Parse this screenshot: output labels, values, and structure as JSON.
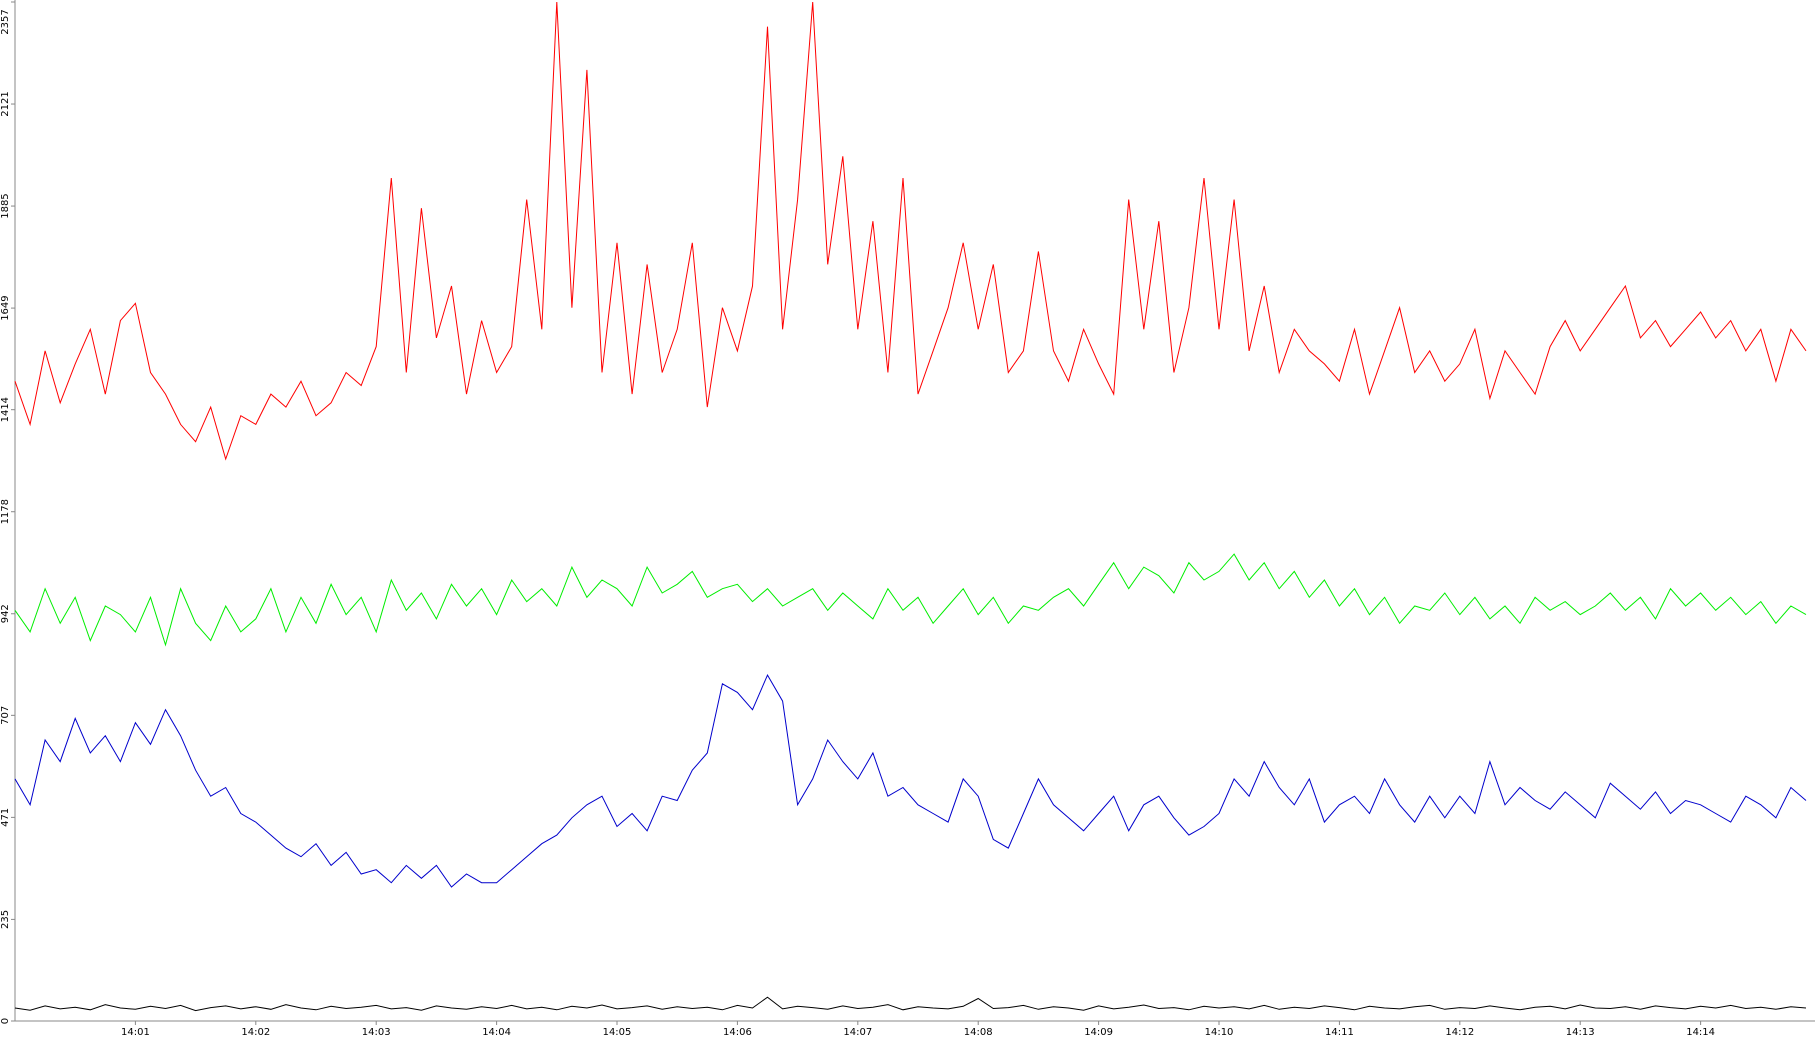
{
  "chart_data": {
    "type": "line",
    "xlim": [
      0,
      14.95
    ],
    "xticks": [
      {
        "value": 1,
        "label": "14:01"
      },
      {
        "value": 2,
        "label": "14:02"
      },
      {
        "value": 3,
        "label": "14:03"
      },
      {
        "value": 4,
        "label": "14:04"
      },
      {
        "value": 5,
        "label": "14:05"
      },
      {
        "value": 6,
        "label": "14:06"
      },
      {
        "value": 7,
        "label": "14:07"
      },
      {
        "value": 8,
        "label": "14:08"
      },
      {
        "value": 9,
        "label": "14:09"
      },
      {
        "value": 10,
        "label": "14:10"
      },
      {
        "value": 11,
        "label": "14:11"
      },
      {
        "value": 12,
        "label": "14:12"
      },
      {
        "value": 13,
        "label": "14:13"
      },
      {
        "value": 14,
        "label": "14:14"
      }
    ],
    "ylim": [
      0,
      2357
    ],
    "yticks": [
      0,
      235,
      471,
      707,
      942,
      1178,
      1414,
      1649,
      1885,
      2121,
      2357
    ],
    "x": [
      0,
      0.125,
      0.25,
      0.375,
      0.5,
      0.625,
      0.75,
      0.875,
      1,
      1.125,
      1.25,
      1.375,
      1.5,
      1.625,
      1.75,
      1.875,
      2,
      2.125,
      2.25,
      2.375,
      2.5,
      2.625,
      2.75,
      2.875,
      3,
      3.125,
      3.25,
      3.375,
      3.5,
      3.625,
      3.75,
      3.875,
      4,
      4.125,
      4.25,
      4.375,
      4.5,
      4.625,
      4.75,
      4.875,
      5,
      5.125,
      5.25,
      5.375,
      5.5,
      5.625,
      5.75,
      5.875,
      6,
      6.125,
      6.25,
      6.375,
      6.5,
      6.625,
      6.75,
      6.875,
      7,
      7.125,
      7.25,
      7.375,
      7.5,
      7.625,
      7.75,
      7.875,
      8,
      8.125,
      8.25,
      8.375,
      8.5,
      8.625,
      8.75,
      8.875,
      9,
      9.125,
      9.25,
      9.375,
      9.5,
      9.625,
      9.75,
      9.875,
      10,
      10.125,
      10.25,
      10.375,
      10.5,
      10.625,
      10.75,
      10.875,
      11,
      11.125,
      11.25,
      11.375,
      11.5,
      11.625,
      11.75,
      11.875,
      12,
      12.125,
      12.25,
      12.375,
      12.5,
      12.625,
      12.75,
      12.875,
      13,
      13.125,
      13.25,
      13.375,
      13.5,
      13.625,
      13.75,
      13.875,
      14,
      14.125,
      14.25,
      14.375,
      14.5,
      14.625,
      14.75,
      14.875
    ],
    "series": [
      {
        "color": "#ff0000",
        "values": [
          1480,
          1380,
          1550,
          1430,
          1520,
          1600,
          1450,
          1620,
          1660,
          1500,
          1450,
          1380,
          1340,
          1420,
          1300,
          1400,
          1380,
          1450,
          1420,
          1480,
          1400,
          1430,
          1500,
          1470,
          1560,
          1950,
          1500,
          1880,
          1580,
          1700,
          1450,
          1620,
          1500,
          1560,
          1900,
          1600,
          2357,
          1650,
          2200,
          1500,
          1800,
          1450,
          1750,
          1500,
          1600,
          1800,
          1420,
          1650,
          1550,
          1700,
          2300,
          1600,
          1900,
          2357,
          1750,
          2000,
          1600,
          1850,
          1500,
          1950,
          1450,
          1550,
          1650,
          1800,
          1600,
          1750,
          1500,
          1550,
          1780,
          1550,
          1480,
          1600,
          1520,
          1450,
          1900,
          1600,
          1850,
          1500,
          1650,
          1950,
          1600,
          1900,
          1550,
          1700,
          1500,
          1600,
          1550,
          1520,
          1480,
          1600,
          1450,
          1550,
          1650,
          1500,
          1550,
          1480,
          1520,
          1600,
          1440,
          1550,
          1500,
          1450,
          1560,
          1620,
          1550,
          1600,
          1650,
          1700,
          1580,
          1620,
          1560,
          1600,
          1640,
          1580,
          1620,
          1550,
          1600,
          1480,
          1600,
          1550
        ]
      },
      {
        "color": "#00ee00",
        "values": [
          950,
          900,
          1000,
          920,
          980,
          880,
          960,
          940,
          900,
          980,
          870,
          1000,
          920,
          880,
          960,
          900,
          930,
          1000,
          900,
          980,
          920,
          1010,
          940,
          980,
          900,
          1020,
          950,
          990,
          930,
          1010,
          960,
          1000,
          940,
          1020,
          970,
          1000,
          960,
          1050,
          980,
          1020,
          1000,
          960,
          1050,
          990,
          1010,
          1040,
          980,
          1000,
          1010,
          970,
          1000,
          960,
          980,
          1000,
          950,
          990,
          960,
          930,
          1000,
          950,
          980,
          920,
          960,
          1000,
          940,
          980,
          920,
          960,
          950,
          980,
          1000,
          960,
          1010,
          1060,
          1000,
          1050,
          1030,
          990,
          1060,
          1020,
          1040,
          1080,
          1020,
          1060,
          1000,
          1040,
          980,
          1020,
          960,
          1000,
          940,
          980,
          920,
          960,
          950,
          990,
          940,
          980,
          930,
          960,
          920,
          980,
          950,
          970,
          940,
          960,
          990,
          950,
          980,
          930,
          1000,
          960,
          990,
          950,
          980,
          940,
          970,
          920,
          960,
          940
        ]
      },
      {
        "color": "#0000cc",
        "values": [
          560,
          500,
          650,
          600,
          700,
          620,
          660,
          600,
          690,
          640,
          720,
          660,
          580,
          520,
          540,
          480,
          460,
          430,
          400,
          380,
          410,
          360,
          390,
          340,
          350,
          320,
          360,
          330,
          360,
          310,
          340,
          320,
          320,
          350,
          380,
          410,
          430,
          470,
          500,
          520,
          450,
          480,
          440,
          520,
          510,
          580,
          620,
          780,
          760,
          720,
          800,
          740,
          500,
          560,
          650,
          600,
          560,
          620,
          520,
          540,
          500,
          480,
          460,
          560,
          520,
          420,
          400,
          480,
          560,
          500,
          470,
          440,
          480,
          520,
          440,
          500,
          520,
          470,
          430,
          450,
          480,
          560,
          520,
          600,
          540,
          500,
          560,
          460,
          500,
          520,
          480,
          560,
          500,
          460,
          520,
          470,
          520,
          480,
          600,
          500,
          540,
          510,
          490,
          530,
          500,
          470,
          550,
          520,
          490,
          530,
          480,
          510,
          500,
          480,
          460,
          520,
          500,
          470,
          540,
          510
        ]
      },
      {
        "color": "#000000",
        "values": [
          30,
          25,
          35,
          28,
          32,
          26,
          38,
          30,
          27,
          34,
          29,
          36,
          24,
          31,
          35,
          28,
          33,
          27,
          38,
          30,
          26,
          34,
          29,
          32,
          36,
          28,
          31,
          25,
          35,
          30,
          27,
          33,
          29,
          36,
          28,
          32,
          26,
          34,
          30,
          37,
          28,
          31,
          35,
          27,
          33,
          29,
          32,
          26,
          36,
          30,
          55,
          28,
          34,
          31,
          27,
          35,
          29,
          32,
          38,
          26,
          33,
          30,
          28,
          34,
          52,
          29,
          31,
          36,
          27,
          33,
          30,
          25,
          35,
          28,
          32,
          37,
          29,
          31,
          26,
          34,
          30,
          33,
          28,
          36,
          27,
          32,
          29,
          35,
          31,
          26,
          34,
          30,
          28,
          33,
          36,
          27,
          31,
          29,
          35,
          30,
          26,
          32,
          34,
          28,
          37,
          30,
          29,
          33,
          27,
          35,
          31,
          28,
          34,
          30,
          36,
          29,
          32,
          27,
          33,
          30
        ]
      }
    ]
  }
}
